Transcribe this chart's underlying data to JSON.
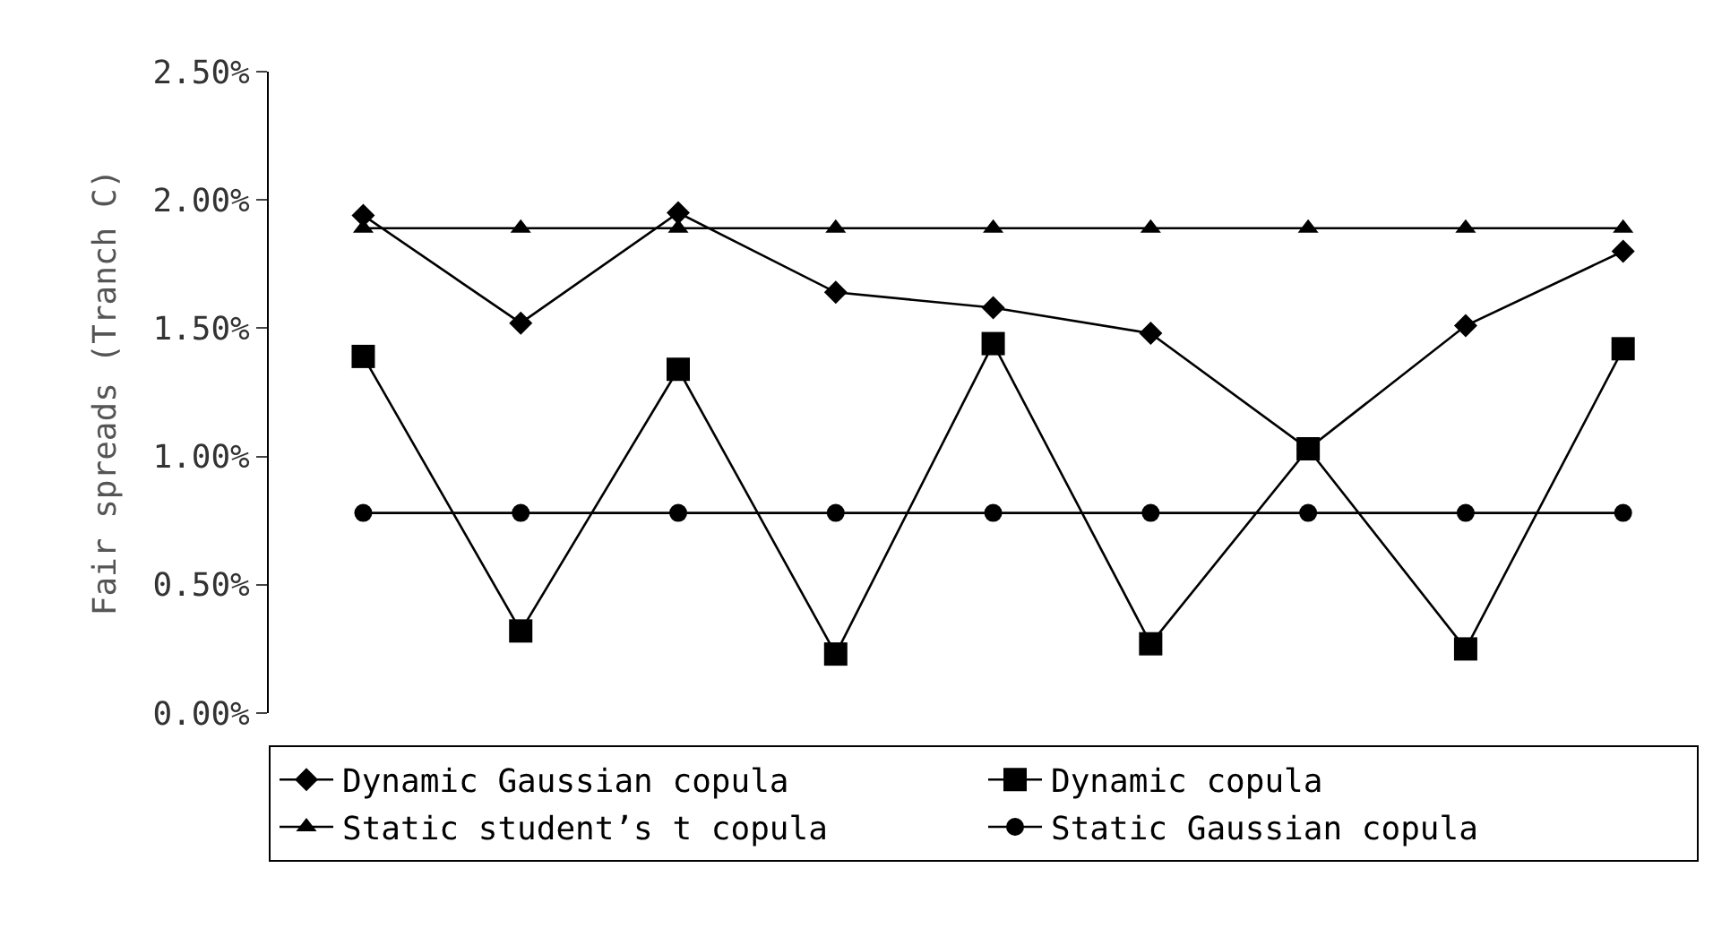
{
  "chart_data": {
    "type": "line",
    "ylabel": "Fair spreads (Tranch C)",
    "categories": [
      null,
      null,
      null,
      null,
      null,
      null,
      null,
      null,
      null
    ],
    "series": [
      {
        "name": "Dynamic Gaussian copula",
        "color": "#000000",
        "marker": "diamond",
        "values": [
          1.94,
          1.52,
          1.95,
          1.64,
          1.58,
          1.48,
          1.03,
          1.51,
          1.8
        ]
      },
      {
        "name": "Dynamic copula",
        "color": "#000000",
        "marker": "square",
        "values": [
          1.39,
          0.32,
          1.34,
          0.23,
          1.44,
          0.27,
          1.03,
          0.25,
          1.42
        ]
      },
      {
        "name": "Static student’s t copula",
        "color": "#000000",
        "marker": "triangle",
        "values": [
          1.89,
          1.89,
          1.89,
          1.89,
          1.89,
          1.89,
          1.89,
          1.89,
          1.89
        ]
      },
      {
        "name": "Static Gaussian copula",
        "color": "#000000",
        "marker": "circle",
        "values": [
          0.78,
          0.78,
          0.78,
          0.78,
          0.78,
          0.78,
          0.78,
          0.78,
          0.78
        ]
      }
    ],
    "ylim": [
      0,
      2.5
    ],
    "yticks": [
      {
        "value": 0,
        "label": "0.00%"
      },
      {
        "value": 0.5,
        "label": "0.50%"
      },
      {
        "value": 1.0,
        "label": "1.00%"
      },
      {
        "value": 1.5,
        "label": "1.50%"
      },
      {
        "value": 2.0,
        "label": "2.00%"
      },
      {
        "value": 2.5,
        "label": "2.50%"
      }
    ],
    "tick_labels": "y",
    "legend": "bottom",
    "line_style": "solid"
  }
}
